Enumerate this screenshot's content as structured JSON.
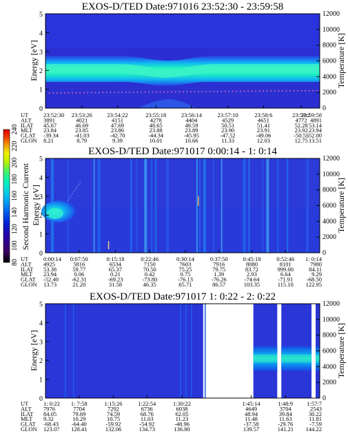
{
  "chart_data": [
    {
      "type": "heatmap",
      "title": "EXOS-D/TED   Date:971016  23:52:30 - 23:59:58",
      "ylabel": "Energy [eV]",
      "y2label": "Temperature [K]",
      "yticks": [
        "0",
        "1",
        "2",
        "3",
        "4",
        "5"
      ],
      "y2ticks": [
        "0",
        "2000",
        "4000",
        "6000",
        "8000",
        "10000",
        "12000"
      ],
      "ylim": [
        0,
        5
      ],
      "y2lim": [
        0,
        12000
      ],
      "band_center_ev": 2.0,
      "band_dip": {
        "center_frac": 0.45,
        "depth_ev": 0.15
      },
      "temperature_trace_k": {
        "start": 2000,
        "end": 2300
      },
      "columns_frac": [
        0.0,
        0.1325,
        0.2625,
        0.4025,
        0.5325,
        0.665,
        0.795,
        0.9325,
        1.0
      ],
      "table": {
        "row_labels": [
          "UT",
          "ALT",
          "ILAT",
          "MLT",
          "GLAT",
          "GLON"
        ],
        "columns": [
          [
            "23:52:30",
            "3891",
            "45.67",
            "23.84",
            "-39.34",
            "8.21"
          ],
          [
            "23:53:26",
            "4021",
            "46.69",
            "23.85",
            "-41.03",
            "8.79"
          ],
          [
            "23:54:22",
            "4151",
            "47.69",
            "23.86",
            "-42.70",
            "9.39"
          ],
          [
            "23:55:18",
            "4278",
            "48.65",
            "23.88",
            "-44.34",
            "10.01"
          ],
          [
            "23:56:14",
            "4404",
            "49.59",
            "23.89",
            "-45.95",
            "10.66"
          ],
          [
            "23:57:10",
            "4529",
            "50.51",
            "23.90",
            "-47.52",
            "11.33"
          ],
          [
            "23:58:6",
            "4651",
            "51.41",
            "23.91",
            "-49.06",
            "12.03"
          ],
          [
            "23:59:2",
            "4772",
            "52.28",
            "23.92",
            "-50.55",
            "12.75"
          ],
          [
            "23:59:58",
            "4891",
            "53.14",
            "23.94",
            "-52.00",
            "13.51"
          ]
        ]
      }
    },
    {
      "type": "heatmap",
      "title": "EXOS-D/TED   Date:971017   0:00:14 - 1: 0:14",
      "ylabel": "Energy [eV]",
      "y2label": "Temperature [K]",
      "yticks": [
        "0",
        "1",
        "2",
        "3",
        "4",
        "5"
      ],
      "y2ticks": [
        "0",
        "2000",
        "4000",
        "6000",
        "8000",
        "10000",
        "12000"
      ],
      "ylim": [
        0,
        5
      ],
      "y2lim": [
        0,
        12000
      ],
      "colorbar": {
        "label": "Second Harmonic Current",
        "ticks": [
          "80",
          "100",
          "120",
          "140",
          "160",
          "180",
          "200",
          "220",
          "240"
        ],
        "range": [
          80,
          240
        ],
        "colors": [
          "#000000",
          "#3b0060",
          "#2a00a8",
          "#0026d8",
          "#0070f0",
          "#00c0f0",
          "#00f0c0",
          "#40f070",
          "#c0f000",
          "#f0f000",
          "#f0a000",
          "#f04000",
          "#e00000"
        ]
      },
      "blob": {
        "x_frac": [
          0.0,
          0.09
        ],
        "energy_ev": 2.3
      },
      "stripes_frac": [
        0.02,
        0.08,
        0.175,
        0.19,
        0.31,
        0.33,
        0.36,
        0.385,
        0.4,
        0.44,
        0.55,
        0.56,
        0.575,
        0.61,
        0.64,
        0.72,
        0.74,
        0.79,
        0.805,
        0.845,
        0.88,
        0.95
      ],
      "marks_frac": [
        0.5,
        0.09
      ],
      "columns_frac": [
        0.0,
        0.1225,
        0.255,
        0.38,
        0.51,
        0.6325,
        0.7525,
        0.875,
        1.0
      ],
      "table": {
        "row_labels": [
          "UT",
          "ALT",
          "ILAT",
          "MLT",
          "GLAT",
          "GLON"
        ],
        "columns": [
          [
            "0:00:14",
            "4925",
            "53.38",
            "23.94",
            "-52.40",
            "13.73"
          ],
          [
            "0:07:50",
            "5816",
            "59.77",
            "0.06",
            "-62.31",
            "21.20"
          ],
          [
            "0:15:18",
            "6534",
            "65.37",
            "0.21",
            "-69.23",
            "31.58"
          ],
          [
            "0:22:46",
            "7150",
            "70.50",
            "0.42",
            "-73.80",
            "46.35"
          ],
          [
            "0:30:14",
            "7603",
            "75.25",
            "0.75",
            "-76.13",
            "65.71"
          ],
          [
            "0:37:50",
            "7916",
            "79.75",
            "1.39",
            "-76.26",
            "86.57"
          ],
          [
            "0:45:18",
            "8080",
            "83.72",
            "2.93",
            "-74.64",
            "103.35"
          ],
          [
            "0:52:46",
            "8101",
            "999.00",
            "6.64",
            "-71.91",
            "115.10"
          ],
          [
            "1: 0:14",
            "7980",
            "84.11",
            "9.29",
            "-68.50",
            "122.95"
          ]
        ]
      }
    },
    {
      "type": "heatmap",
      "title": "EXOS-D/TED   Date:971017   1: 0:22 - 2: 0:22",
      "ylabel": "Energy [eV]",
      "y2label": "Temperature [K]",
      "yticks": [
        "0",
        "1",
        "2",
        "3",
        "4",
        "5"
      ],
      "y2ticks": [
        "0",
        "2000",
        "4000",
        "6000",
        "8000",
        "10000",
        "12000"
      ],
      "ylim": [
        0,
        5
      ],
      "y2lim": [
        0,
        12000
      ],
      "data_segments_frac": [
        [
          0.0,
          0.575
        ],
        [
          0.758,
          0.845
        ],
        [
          0.86,
          0.97
        ],
        [
          0.985,
          1.0
        ]
      ],
      "band_center_ev": 2.1,
      "columns_frac": [
        0.0,
        0.1225,
        0.2475,
        0.37,
        0.4975,
        0.75,
        0.875,
        1.0
      ],
      "table": {
        "row_labels": [
          "UT",
          "ALT",
          "ILAT",
          "MLT",
          "GLAT",
          "GLON"
        ],
        "columns": [
          [
            "1: 0:22",
            "7976",
            "84.05",
            "9.32",
            "-68.43",
            "123.07"
          ],
          [
            "1: 7:58",
            "7704",
            "79.69",
            "10.29",
            "-64.40",
            "128.41"
          ],
          [
            "1:15:26",
            "7292",
            "74.59",
            "10.75",
            "-59.92",
            "132.06"
          ],
          [
            "1:22:54",
            "6736",
            "68.76",
            "11.03",
            "-54.92",
            "134.73"
          ],
          [
            "1:30:22",
            "6038",
            "62.05",
            "11.23",
            "-48.96",
            "136.80"
          ],
          [
            "1:45:14",
            "4649",
            "48.94",
            "11.48",
            "-37.58",
            "139.57"
          ],
          [
            "1:48:9",
            "3704",
            "39.84",
            "11.63",
            "-29.76",
            "141.21"
          ],
          [
            "1:57:7",
            "2543",
            "30.22",
            "11.81",
            "-7.59",
            "144.22"
          ]
        ]
      }
    }
  ]
}
